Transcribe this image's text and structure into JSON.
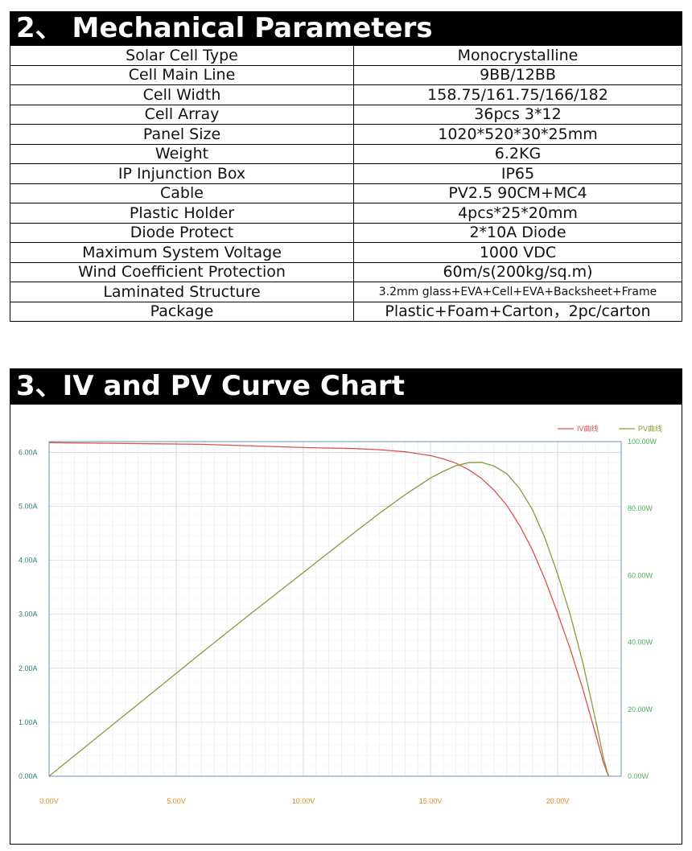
{
  "mechanical": {
    "title": "2、 Mechanical Parameters",
    "rows": [
      {
        "label": "Solar Cell Type",
        "value": "Monocrystalline"
      },
      {
        "label": "Cell Main Line",
        "value": "9BB/12BB"
      },
      {
        "label": "Cell Width",
        "value": "158.75/161.75/166/182"
      },
      {
        "label": "Cell Array",
        "value": "36pcs 3*12"
      },
      {
        "label": "Panel Size",
        "value": "1020*520*30*25mm"
      },
      {
        "label": "Weight",
        "value": "6.2KG"
      },
      {
        "label": "IP Injunction Box",
        "value": "IP65"
      },
      {
        "label": "Cable",
        "value": "PV2.5 90CM+MC4"
      },
      {
        "label": "Plastic Holder",
        "value": "4pcs*25*20mm"
      },
      {
        "label": "Diode Protect",
        "value": "2*10A Diode"
      },
      {
        "label": "Maximum System Voltage",
        "value": "1000 VDC"
      },
      {
        "label": "Wind Coefficient Protection",
        "value": "60m/s(200kg/sq.m)"
      },
      {
        "label": "Laminated Structure",
        "value": "3.2mm glass+EVA+Cell+EVA+Backsheet+Frame"
      },
      {
        "label": "Package",
        "value": "Plastic+Foam+Carton，2pc/carton"
      }
    ]
  },
  "chart_section": {
    "title": "3、IV and PV Curve Chart"
  },
  "chart_data": {
    "type": "line",
    "title": "",
    "xlabel": "",
    "ylabel": "",
    "xlim": [
      0,
      22.5
    ],
    "ylim": [
      0,
      6.2
    ],
    "y2lim": [
      0,
      100
    ],
    "x_ticks": [
      "0.00V",
      "5.00V",
      "10.00V",
      "15.00V",
      "20.00V"
    ],
    "x_tick_values": [
      0,
      5,
      10,
      15,
      20
    ],
    "y_ticks": [
      "0.00A",
      "1.00A",
      "2.00A",
      "3.00A",
      "4.00A",
      "5.00A",
      "6.00A"
    ],
    "y_tick_values": [
      0,
      1,
      2,
      3,
      4,
      5,
      6
    ],
    "y2_ticks": [
      "0.00W",
      "20.00W",
      "40.00W",
      "60.00W",
      "80.00W",
      "100.00W"
    ],
    "y2_tick_values": [
      0,
      20,
      40,
      60,
      80,
      100
    ],
    "grid": true,
    "legend_position": "top-right",
    "series": [
      {
        "name": "IV曲线",
        "color": "#d9534f",
        "axis": "left",
        "x": [
          0,
          2,
          4,
          6,
          8,
          10,
          12,
          13,
          14,
          15,
          15.5,
          16,
          16.5,
          17,
          17.5,
          18,
          18.5,
          19,
          19.5,
          20,
          20.5,
          21,
          21.3,
          21.6,
          21.8,
          22
        ],
        "y": [
          6.18,
          6.17,
          6.16,
          6.15,
          6.12,
          6.09,
          6.07,
          6.05,
          6.01,
          5.94,
          5.88,
          5.8,
          5.68,
          5.52,
          5.3,
          5.02,
          4.65,
          4.2,
          3.65,
          3.02,
          2.35,
          1.6,
          1.1,
          0.6,
          0.25,
          0.0
        ]
      },
      {
        "name": "PV曲线",
        "color": "#8a9a3a",
        "axis": "right",
        "x": [
          0,
          2,
          4,
          6,
          8,
          10,
          12,
          13,
          14,
          15,
          15.5,
          16,
          16.5,
          17,
          17.5,
          18,
          18.5,
          19,
          19.5,
          20,
          20.5,
          21,
          21.3,
          21.6,
          21.8,
          22
        ],
        "y": [
          0,
          12.3,
          24.6,
          36.9,
          49,
          60.9,
          72.8,
          78.6,
          84.1,
          89.1,
          91.1,
          92.8,
          93.7,
          93.8,
          92.7,
          90.4,
          86,
          79.8,
          71.2,
          60.4,
          48.2,
          33.6,
          23.4,
          13,
          5.5,
          0
        ]
      }
    ]
  }
}
